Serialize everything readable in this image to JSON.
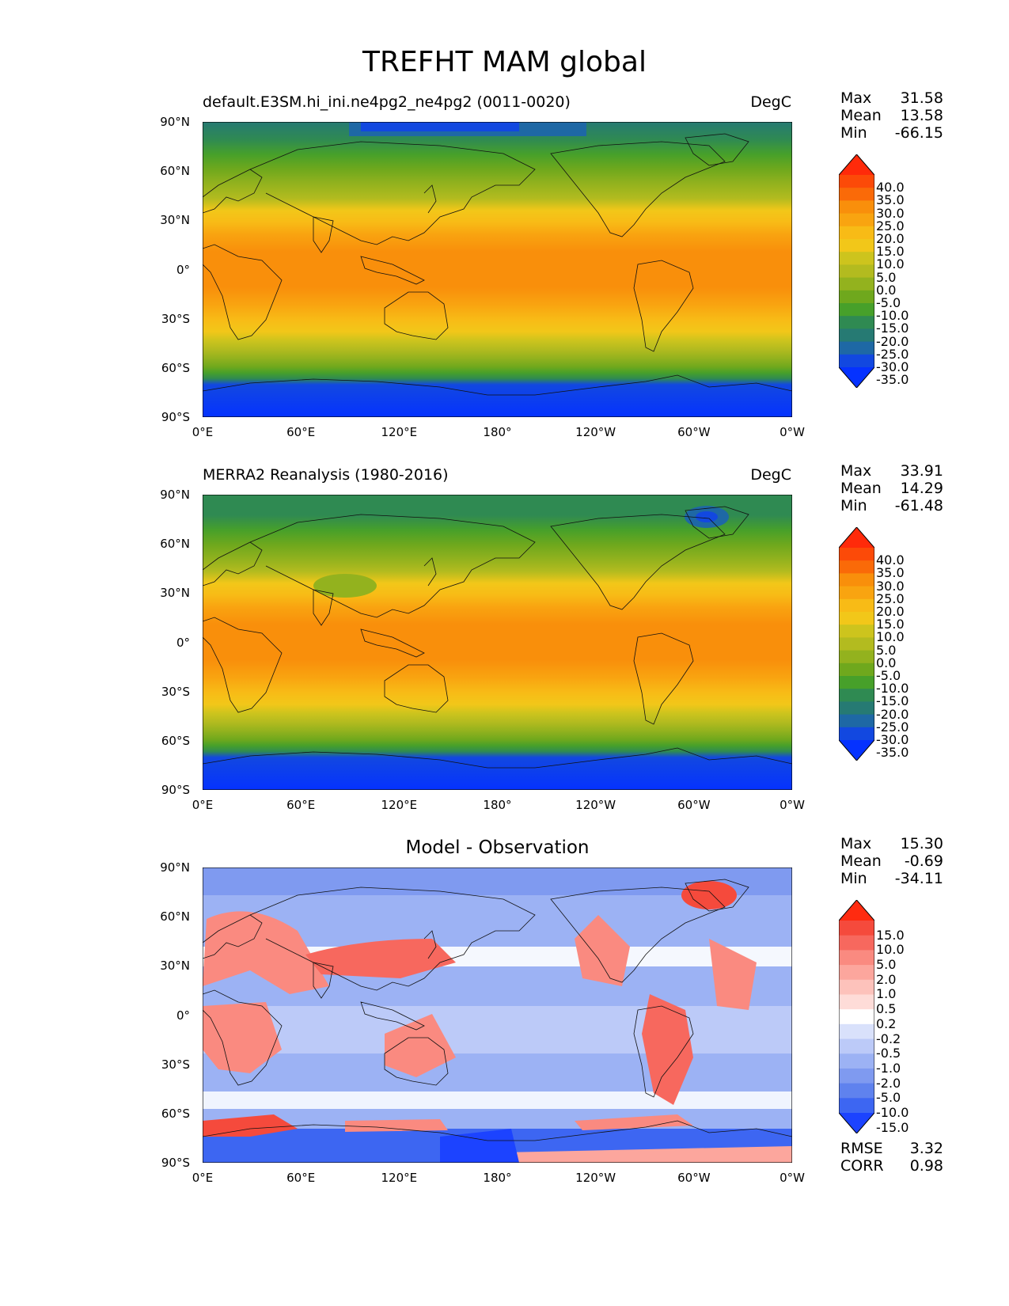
{
  "figure_title": "TREFHT MAM global",
  "panels": [
    {
      "title_left": "default.E3SM.hi_ini.ne4pg2_ne4pg2 (0011-0020)",
      "title_right": "DegC",
      "title_center": "",
      "stats": {
        "max_label": "Max",
        "max": "31.58",
        "mean_label": "Mean",
        "mean": "13.58",
        "min_label": "Min",
        "min": "-66.15"
      }
    },
    {
      "title_left": "MERRA2 Reanalysis (1980-2016)",
      "title_right": "DegC",
      "title_center": "",
      "stats": {
        "max_label": "Max",
        "max": "33.91",
        "mean_label": "Mean",
        "mean": "14.29",
        "min_label": "Min",
        "min": "-61.48"
      }
    },
    {
      "title_left": "",
      "title_right": "",
      "title_center": "Model - Observation",
      "stats": {
        "max_label": "Max",
        "max": "15.30",
        "mean_label": "Mean",
        "mean": "-0.69",
        "min_label": "Min",
        "min": "-34.11"
      }
    }
  ],
  "metrics": {
    "rmse_label": "RMSE",
    "rmse": "3.32",
    "corr_label": "CORR",
    "corr": "0.98"
  },
  "axes": {
    "lat_ticks": [
      "90°N",
      "60°N",
      "30°N",
      "0°",
      "30°S",
      "60°S",
      "90°S"
    ],
    "lon_ticks": [
      "0°E",
      "60°E",
      "120°E",
      "180°",
      "120°W",
      "60°W",
      "0°W"
    ]
  },
  "colorbars": {
    "abs": {
      "tick_labels": [
        "40.0",
        "35.0",
        "30.0",
        "25.0",
        "20.0",
        "15.0",
        "10.0",
        "5.0",
        "0.0",
        "-5.0",
        "-10.0",
        "-15.0",
        "-20.0",
        "-25.0",
        "-30.0",
        "-35.0"
      ],
      "colors": [
        "#ff2a0a",
        "#fc4a08",
        "#fa6a08",
        "#f98f0b",
        "#f9a410",
        "#f8bb16",
        "#f2c719",
        "#cdc41d",
        "#b3bb1f",
        "#93b21e",
        "#6fa81d",
        "#47a02a",
        "#2f8a52",
        "#267a73",
        "#1e68a5",
        "#1248e0",
        "#0532ff"
      ]
    },
    "diff": {
      "tick_labels": [
        "15.0",
        "10.0",
        "5.0",
        "2.0",
        "1.0",
        "0.5",
        "0.2",
        "-0.2",
        "-0.5",
        "-1.0",
        "-2.0",
        "-5.0",
        "-10.0",
        "-15.0"
      ],
      "colors": [
        "#ff2b10",
        "#f54a3c",
        "#f7685e",
        "#fa8a80",
        "#fca69d",
        "#fdc2bb",
        "#fedcd8",
        "#ffffff",
        "#d9e1fb",
        "#bccaf8",
        "#9cb2f4",
        "#7f9af0",
        "#5f82ee",
        "#3d66f2",
        "#1c43ff"
      ]
    }
  }
}
